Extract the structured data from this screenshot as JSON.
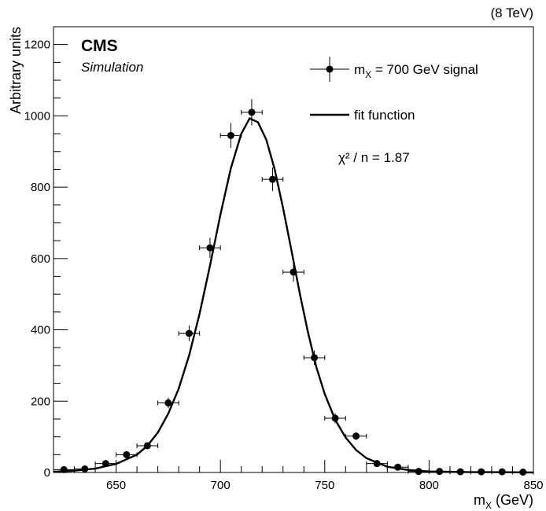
{
  "header": {
    "energy_label": "(8 TeV)"
  },
  "labels": {
    "experiment": "CMS",
    "sublabel": "Simulation",
    "chi2_text": "χ² / n = 1.87"
  },
  "legend": {
    "signal_label": "m",
    "signal_sub": "X",
    "signal_rest": " = 700 GeV signal",
    "fit_label": "fit function"
  },
  "chart_data": {
    "type": "scatter",
    "xlabel_main": "m",
    "xlabel_sub": "X",
    "xlabel_unit": " (GeV)",
    "ylabel": "Arbitrary units",
    "xlim": [
      620,
      850
    ],
    "ylim": [
      0,
      1250
    ],
    "xticks": [
      650,
      700,
      750,
      800,
      850
    ],
    "yticks": [
      0,
      200,
      400,
      600,
      800,
      1000,
      1200
    ],
    "bin_half_width": 5,
    "points": [
      {
        "x": 625,
        "y": 8,
        "err": 3
      },
      {
        "x": 635,
        "y": 10,
        "err": 4
      },
      {
        "x": 645,
        "y": 25,
        "err": 5
      },
      {
        "x": 655,
        "y": 50,
        "err": 7
      },
      {
        "x": 665,
        "y": 75,
        "err": 9
      },
      {
        "x": 675,
        "y": 195,
        "err": 15
      },
      {
        "x": 685,
        "y": 390,
        "err": 22
      },
      {
        "x": 695,
        "y": 630,
        "err": 28
      },
      {
        "x": 705,
        "y": 945,
        "err": 35
      },
      {
        "x": 715,
        "y": 1010,
        "err": 37
      },
      {
        "x": 725,
        "y": 822,
        "err": 33
      },
      {
        "x": 735,
        "y": 562,
        "err": 27
      },
      {
        "x": 745,
        "y": 322,
        "err": 20
      },
      {
        "x": 755,
        "y": 152,
        "err": 14
      },
      {
        "x": 765,
        "y": 102,
        "err": 11
      },
      {
        "x": 775,
        "y": 25,
        "err": 5
      },
      {
        "x": 785,
        "y": 15,
        "err": 4
      },
      {
        "x": 795,
        "y": 3,
        "err": 2
      },
      {
        "x": 805,
        "y": 3,
        "err": 2
      },
      {
        "x": 815,
        "y": 2,
        "err": 1
      },
      {
        "x": 825,
        "y": 2,
        "err": 1
      },
      {
        "x": 835,
        "y": 2,
        "err": 1
      },
      {
        "x": 845,
        "y": 1,
        "err": 1
      }
    ],
    "fit_curve": {
      "x": [
        620,
        630,
        640,
        650,
        660,
        665,
        670,
        675,
        680,
        685,
        690,
        695,
        700,
        705,
        710,
        714,
        718,
        722,
        726,
        730,
        734,
        738,
        742,
        746,
        750,
        755,
        760,
        765,
        770,
        780,
        790,
        800,
        810,
        820,
        830,
        850
      ],
      "y": [
        2,
        5,
        11,
        24,
        50,
        75,
        112,
        165,
        235,
        328,
        445,
        580,
        723,
        853,
        950,
        993,
        982,
        933,
        850,
        742,
        624,
        503,
        392,
        295,
        220,
        148,
        98,
        63,
        40,
        16,
        7,
        3,
        2,
        1,
        1,
        0
      ]
    },
    "grid": false,
    "legend_position": "top-right"
  }
}
